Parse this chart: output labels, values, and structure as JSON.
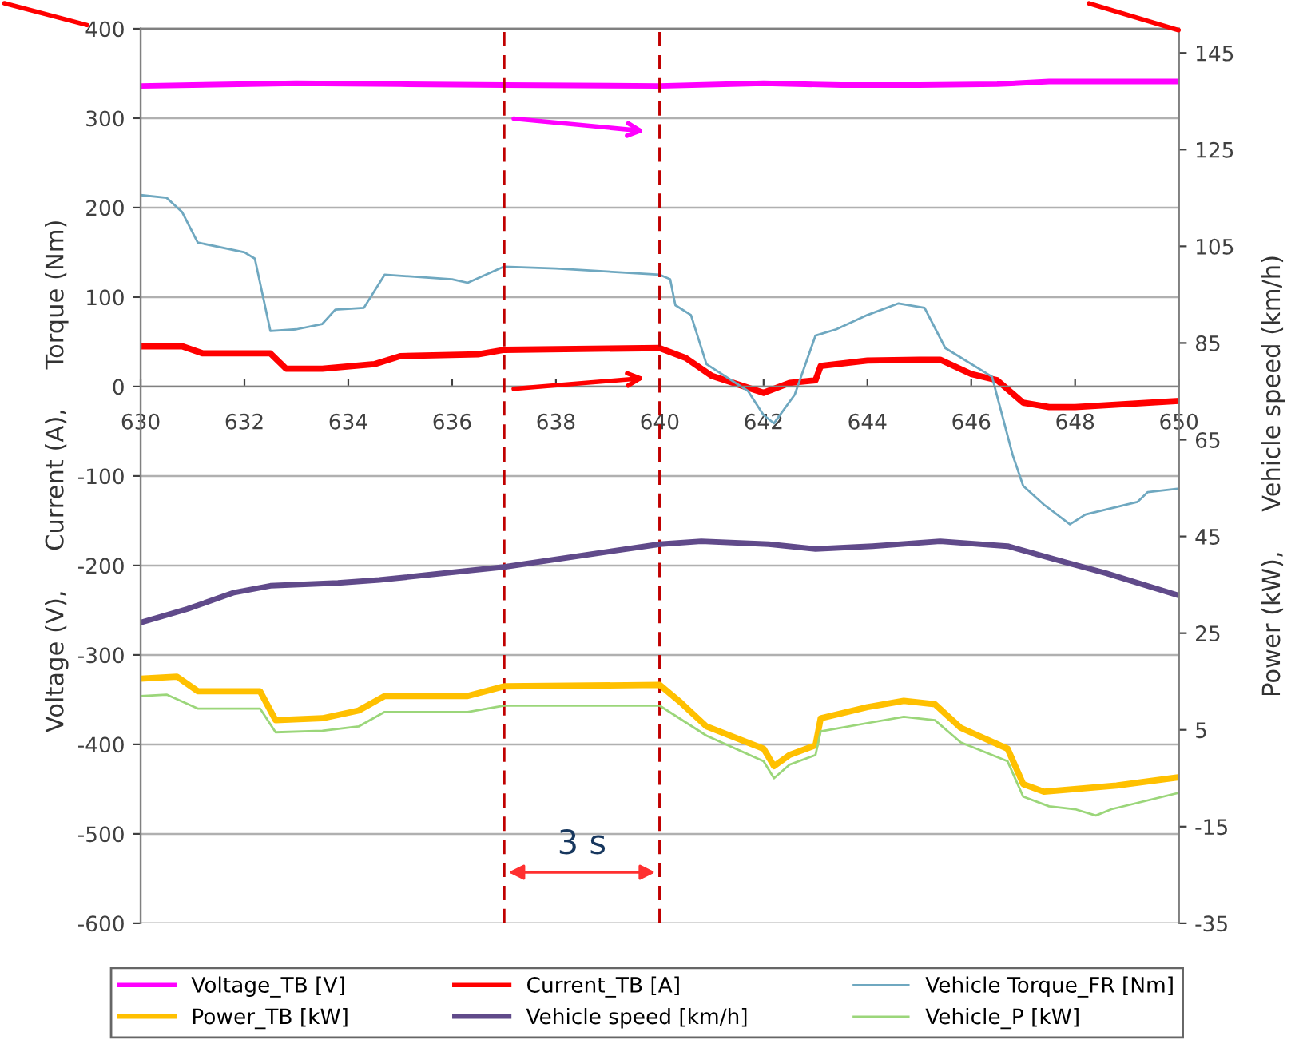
{
  "chart_data": {
    "type": "line",
    "ylabel": "Voltage (V),     Current (A),     Torque (Nm)",
    "y2label": "Power (kW),     Vehicle speed (km/h)",
    "xlim": [
      630,
      650
    ],
    "xticks": [
      630,
      632,
      634,
      636,
      638,
      640,
      642,
      644,
      646,
      648,
      650
    ],
    "ylim": [
      -600,
      400
    ],
    "yticks": [
      -600,
      -500,
      -400,
      -300,
      -200,
      -100,
      0,
      100,
      200,
      300,
      400
    ],
    "y2lim": [
      -35,
      150
    ],
    "y2ticks": [
      -35,
      -15,
      5,
      25,
      45,
      65,
      85,
      105,
      125,
      145
    ],
    "grid": "y",
    "legend": "bottom",
    "marker": "none",
    "line_style": "solid",
    "series": [
      {
        "name": "Voltage_TB [V]",
        "color": "#ff00ff",
        "x": [
          630,
          631,
          633,
          635,
          637,
          640,
          642,
          643.5,
          645,
          646.5,
          647.5,
          650
        ],
        "values": [
          336,
          337,
          339,
          338,
          337,
          336,
          339,
          337,
          337,
          338,
          341,
          341
        ]
      },
      {
        "name": "Current_TB [A]",
        "color": "#ff0000",
        "x": [
          630,
          630.8,
          631.2,
          632.5,
          632.8,
          633.5,
          634.5,
          635,
          636.5,
          637,
          640,
          640.5,
          641,
          642,
          642.5,
          643,
          643.1,
          644,
          645,
          645.4,
          646,
          646.5,
          647,
          647.5,
          648,
          650
        ],
        "values": [
          45,
          45,
          37,
          37,
          20,
          20,
          25,
          34,
          36,
          41,
          43,
          32,
          12,
          -7,
          4,
          7,
          23,
          29,
          30,
          30,
          14,
          7,
          -18,
          -23,
          -23,
          -16
        ]
      },
      {
        "name": "Vehicle Torque_FR [Nm]",
        "color": "#6fa8c0",
        "x": [
          630,
          630.5,
          630.8,
          631.1,
          632,
          632.2,
          632.5,
          633,
          633.5,
          633.75,
          634.3,
          634.7,
          636,
          636.3,
          637,
          638,
          640,
          640.2,
          640.3,
          640.6,
          640.9,
          641.7,
          642,
          642.2,
          642.6,
          643,
          643.4,
          644,
          644.6,
          645.1,
          645.5,
          646.4,
          646.8,
          647,
          647.4,
          647.9,
          648.2,
          649.2,
          649.4,
          650
        ],
        "values": [
          214,
          211,
          195,
          161,
          150,
          143,
          62,
          64,
          70,
          86,
          88,
          125,
          120,
          116,
          134,
          132,
          125,
          120,
          91,
          80,
          25,
          -5,
          -32,
          -41,
          -9,
          57,
          64,
          80,
          93,
          88,
          43,
          11,
          -77,
          -111,
          -132,
          -154,
          -143,
          -129,
          -118,
          -114
        ]
      },
      {
        "name": "Power_TB [kW]",
        "color": "#ffc000",
        "axis": "y2",
        "x": [
          630,
          630.7,
          631.1,
          632.3,
          632.6,
          633.5,
          634.2,
          634.7,
          636.3,
          637,
          640,
          640.4,
          640.9,
          642,
          642.2,
          642.5,
          643,
          643.1,
          644,
          644.7,
          645.3,
          645.8,
          646.7,
          647,
          647.4,
          648.8,
          650
        ],
        "values": [
          15.6,
          16,
          13,
          13,
          7,
          7.4,
          9,
          12,
          12,
          14,
          14.3,
          10.7,
          5.7,
          1.1,
          -2.5,
          -0.2,
          1.8,
          7.4,
          9.7,
          11,
          10.3,
          5.4,
          1.1,
          -6.2,
          -7.8,
          -6.5,
          -4.8
        ]
      },
      {
        "name": "Vehicle speed [km/h]",
        "color": "#604a8a",
        "axis": "y2",
        "x": [
          630,
          630.9,
          631.8,
          632.5,
          633.8,
          634.6,
          637,
          640,
          640.8,
          642.1,
          643,
          644.1,
          645.4,
          646.7,
          647.8,
          648.6,
          650
        ],
        "values": [
          27.2,
          30,
          33.4,
          34.8,
          35.4,
          36,
          38.7,
          43.4,
          44,
          43.4,
          42.4,
          43,
          44,
          43,
          39.7,
          37.4,
          32.8
        ]
      },
      {
        "name": "Vehicle_P [kW]",
        "color": "#9bd67a",
        "axis": "y2",
        "x": [
          630,
          630.5,
          631.1,
          632.3,
          632.6,
          633.5,
          634.2,
          634.7,
          636.3,
          637,
          640,
          640.9,
          642,
          642.2,
          642.5,
          643,
          643.1,
          644,
          644.7,
          645.3,
          645.8,
          646.7,
          647,
          647.5,
          648,
          648.4,
          648.7,
          650
        ],
        "values": [
          12,
          12.3,
          9.4,
          9.4,
          4.5,
          4.8,
          5.7,
          8.7,
          8.7,
          10,
          10,
          3.8,
          -1.5,
          -5,
          -2.2,
          -0.2,
          4.7,
          6.4,
          7.7,
          7,
          2.4,
          -1.5,
          -8.8,
          -10.8,
          -11.4,
          -12.7,
          -11.4,
          -8
        ]
      }
    ],
    "ref_lines": [
      {
        "axis": "x",
        "value": 637,
        "color": "#c00000",
        "line_style": "dashed"
      },
      {
        "axis": "x",
        "value": 640,
        "color": "#c00000",
        "line_style": "dashed"
      }
    ],
    "annotations": [
      "3 s"
    ]
  }
}
